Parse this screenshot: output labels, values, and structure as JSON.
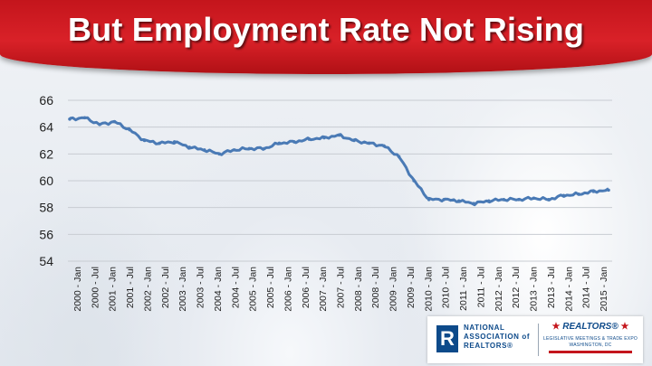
{
  "title": "But Employment Rate Not Rising",
  "colors": {
    "title_bar": "#d92128",
    "series": "#4a7ab5",
    "grid": "#c8ccd2",
    "axis_text": "#222222"
  },
  "logo": {
    "r_mark": "R",
    "nar_lines": [
      "NATIONAL",
      "ASSOCIATION of",
      "REALTORS®"
    ],
    "realtors": "REALTORS®",
    "meetings_line1": "LEGISLATIVE MEETINGS & TRADE EXPO",
    "meetings_line2": "WASHINGTON, DC"
  },
  "chart_data": {
    "type": "line",
    "title": "",
    "xlabel": "",
    "ylabel": "",
    "ylim": [
      54,
      66
    ],
    "yticks": [
      54,
      56,
      58,
      60,
      62,
      64,
      66
    ],
    "grid": "horizontal",
    "legend": "none",
    "x_tick_labels": [
      "2000 - Jan",
      "2000 - Jul",
      "2001 - Jan",
      "2001 - Jul",
      "2002 - Jan",
      "2002 - Jul",
      "2003 - Jan",
      "2003 - Jul",
      "2004 - Jan",
      "2004 - Jul",
      "2005 - Jan",
      "2005 - Jul",
      "2006 - Jan",
      "2006 - Jul",
      "2007 - Jan",
      "2007 - Jul",
      "2008 - Jan",
      "2008 - Jul",
      "2009 - Jan",
      "2009 - Jul",
      "2010 - Jan",
      "2010 - Jul",
      "2011 - Jan",
      "2011 - Jul",
      "2012 - Jan",
      "2012 - Jul",
      "2013 - Jan",
      "2013 - Jul",
      "2014 - Jan",
      "2014 - Jul",
      "2015 - Jan"
    ],
    "series": [
      {
        "values": [
          64.6,
          64.7,
          64.2,
          64.4,
          63.8,
          63.0,
          62.8,
          62.9,
          62.5,
          62.3,
          62.0,
          62.3,
          62.4,
          62.4,
          62.8,
          62.9,
          63.1,
          63.2,
          63.4,
          63.0,
          62.8,
          62.6,
          61.8,
          60.0,
          58.6,
          58.6,
          58.5,
          58.3,
          58.5,
          58.6,
          58.6,
          58.7,
          58.6,
          58.9,
          59.0,
          59.2,
          59.3
        ]
      }
    ]
  }
}
